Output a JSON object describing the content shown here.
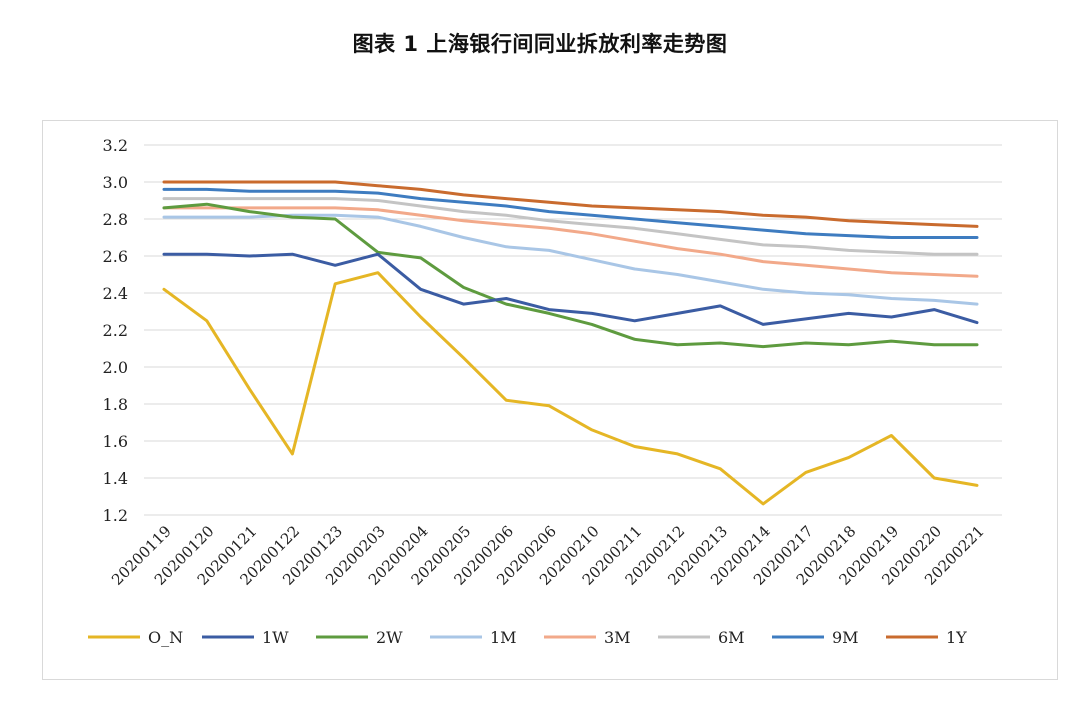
{
  "title": "图表 1  上海银行间同业拆放利率走势图",
  "chart_data": {
    "type": "line",
    "title": "图表 1  上海银行间同业拆放利率走势图",
    "xlabel": "",
    "ylabel": "",
    "ylim": [
      1.2,
      3.2
    ],
    "yticks": [
      "3.2",
      "3.0",
      "2.8",
      "2.6",
      "2.4",
      "2.2",
      "2.0",
      "1.8",
      "1.6",
      "1.4",
      "1.2"
    ],
    "grid": true,
    "legend_position": "bottom",
    "categories": [
      "20200119",
      "20200120",
      "20200121",
      "20200122",
      "20200123",
      "20200203",
      "20200204",
      "20200205",
      "20200206",
      "20200206",
      "20200210",
      "20200211",
      "20200212",
      "20200213",
      "20200214",
      "20200217",
      "20200218",
      "20200219",
      "20200220",
      "20200221"
    ],
    "series": [
      {
        "name": "O_N",
        "color": "#E5B625",
        "values": [
          2.42,
          2.25,
          1.88,
          1.53,
          2.45,
          2.51,
          2.27,
          2.05,
          1.82,
          1.79,
          1.66,
          1.57,
          1.53,
          1.45,
          1.26,
          1.43,
          1.51,
          1.63,
          1.4,
          1.36
        ]
      },
      {
        "name": "1W",
        "color": "#3B5CA3",
        "values": [
          2.61,
          2.61,
          2.6,
          2.61,
          2.55,
          2.61,
          2.42,
          2.34,
          2.37,
          2.31,
          2.29,
          2.25,
          2.29,
          2.33,
          2.23,
          2.26,
          2.29,
          2.27,
          2.31,
          2.24
        ]
      },
      {
        "name": "2W",
        "color": "#5E9B3F",
        "values": [
          2.86,
          2.88,
          2.84,
          2.81,
          2.8,
          2.62,
          2.59,
          2.43,
          2.34,
          2.29,
          2.23,
          2.15,
          2.12,
          2.13,
          2.11,
          2.13,
          2.12,
          2.14,
          2.12,
          2.12
        ]
      },
      {
        "name": "1M",
        "color": "#A9C6E6",
        "values": [
          2.81,
          2.81,
          2.81,
          2.82,
          2.82,
          2.81,
          2.76,
          2.7,
          2.65,
          2.63,
          2.58,
          2.53,
          2.5,
          2.46,
          2.42,
          2.4,
          2.39,
          2.37,
          2.36,
          2.34
        ]
      },
      {
        "name": "3M",
        "color": "#F2A98A",
        "values": [
          2.86,
          2.86,
          2.86,
          2.86,
          2.86,
          2.85,
          2.82,
          2.79,
          2.77,
          2.75,
          2.72,
          2.68,
          2.64,
          2.61,
          2.57,
          2.55,
          2.53,
          2.51,
          2.5,
          2.49
        ]
      },
      {
        "name": "6M",
        "color": "#C4C4C4",
        "values": [
          2.91,
          2.91,
          2.91,
          2.91,
          2.91,
          2.9,
          2.87,
          2.84,
          2.82,
          2.79,
          2.77,
          2.75,
          2.72,
          2.69,
          2.66,
          2.65,
          2.63,
          2.62,
          2.61,
          2.61
        ]
      },
      {
        "name": "9M",
        "color": "#3E7CC0",
        "values": [
          2.96,
          2.96,
          2.95,
          2.95,
          2.95,
          2.94,
          2.91,
          2.89,
          2.87,
          2.84,
          2.82,
          2.8,
          2.78,
          2.76,
          2.74,
          2.72,
          2.71,
          2.7,
          2.7,
          2.7
        ]
      },
      {
        "name": "1Y",
        "color": "#C96B2E",
        "values": [
          3.0,
          3.0,
          3.0,
          3.0,
          3.0,
          2.98,
          2.96,
          2.93,
          2.91,
          2.89,
          2.87,
          2.86,
          2.85,
          2.84,
          2.82,
          2.81,
          2.79,
          2.78,
          2.77,
          2.76
        ]
      }
    ]
  }
}
